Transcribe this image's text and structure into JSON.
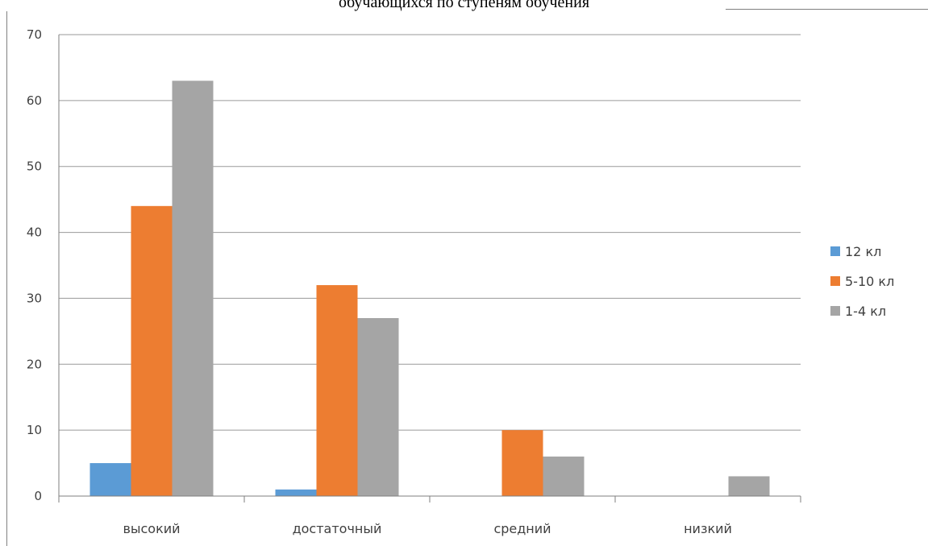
{
  "title": "обучающихся по  ступеням обучения",
  "chart_data": {
    "type": "bar",
    "title": "обучающихся по  ступеням обучения",
    "categories": [
      "высокий",
      "достаточный",
      "средний",
      "низкий"
    ],
    "series": [
      {
        "name": "12 кл",
        "color": "#5B9BD5",
        "values": [
          5,
          1,
          0,
          0
        ]
      },
      {
        "name": "5-10 кл",
        "color": "#ED7D31",
        "values": [
          44,
          32,
          10,
          0
        ]
      },
      {
        "name": "1-4  кл",
        "color": "#A5A5A5",
        "values": [
          63,
          27,
          6,
          3
        ]
      }
    ],
    "yticks": [
      "0",
      "10",
      "20",
      "30",
      "40",
      "50",
      "60",
      "70"
    ],
    "ylim": [
      0,
      70
    ],
    "grid": true,
    "legend": "right",
    "xlabel": "",
    "ylabel": ""
  }
}
